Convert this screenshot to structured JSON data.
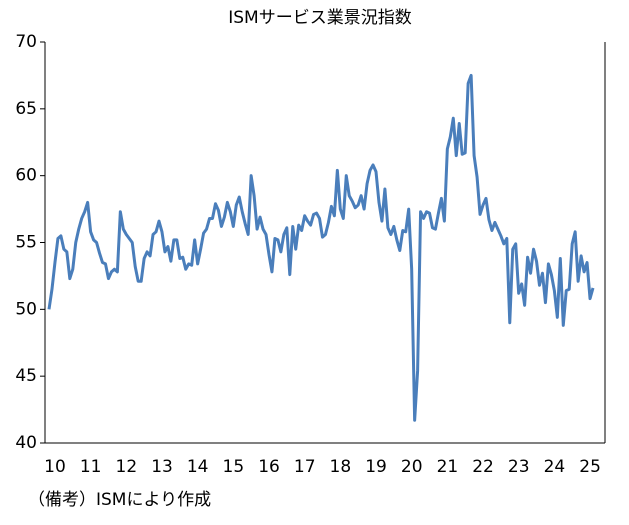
{
  "chart_data": {
    "type": "line",
    "title": "ISMサービス業景況指数",
    "note": "（備考）ISMにより作成",
    "categories": [
      "10",
      null,
      null,
      null,
      null,
      null,
      null,
      null,
      null,
      null,
      null,
      null,
      "11",
      null,
      null,
      null,
      null,
      null,
      null,
      null,
      null,
      null,
      null,
      null,
      "12",
      null,
      null,
      null,
      null,
      null,
      null,
      null,
      null,
      null,
      null,
      null,
      "13",
      null,
      null,
      null,
      null,
      null,
      null,
      null,
      null,
      null,
      null,
      null,
      "14",
      null,
      null,
      null,
      null,
      null,
      null,
      null,
      null,
      null,
      null,
      null,
      "15",
      null,
      null,
      null,
      null,
      null,
      null,
      null,
      null,
      null,
      null,
      null,
      "16",
      null,
      null,
      null,
      null,
      null,
      null,
      null,
      null,
      null,
      null,
      null,
      "17",
      null,
      null,
      null,
      null,
      null,
      null,
      null,
      null,
      null,
      null,
      null,
      "18",
      null,
      null,
      null,
      null,
      null,
      null,
      null,
      null,
      null,
      null,
      null,
      "19",
      null,
      null,
      null,
      null,
      null,
      null,
      null,
      null,
      null,
      null,
      null,
      "20",
      null,
      null,
      null,
      null,
      null,
      null,
      null,
      null,
      null,
      null,
      null,
      "21",
      null,
      null,
      null,
      null,
      null,
      null,
      null,
      null,
      null,
      null,
      null,
      "22",
      null,
      null,
      null,
      null,
      null,
      null,
      null,
      null,
      null,
      null,
      null,
      "23",
      null,
      null,
      null,
      null,
      null,
      null,
      null,
      null,
      null,
      null,
      null,
      "24",
      null,
      null,
      null,
      null,
      null,
      null,
      null,
      null,
      null,
      null,
      null,
      "25",
      null,
      null,
      null
    ],
    "values": [
      50.0,
      51.5,
      53.5,
      55.3,
      55.5,
      54.5,
      54.3,
      52.3,
      53.0,
      55.0,
      56.0,
      56.8,
      57.3,
      58.0,
      55.8,
      55.2,
      55.0,
      54.2,
      53.5,
      53.4,
      52.3,
      52.8,
      53.0,
      52.8,
      57.3,
      56.0,
      55.6,
      55.3,
      55.0,
      53.2,
      52.1,
      52.1,
      53.8,
      54.3,
      54.0,
      55.6,
      55.8,
      56.6,
      55.8,
      54.3,
      54.7,
      53.6,
      55.2,
      55.2,
      53.8,
      53.9,
      53.0,
      53.4,
      53.3,
      55.2,
      53.4,
      54.5,
      55.7,
      56.0,
      56.8,
      56.8,
      57.9,
      57.4,
      56.2,
      56.9,
      58.0,
      57.3,
      56.2,
      57.8,
      58.4,
      57.3,
      56.4,
      55.6,
      60.0,
      58.5,
      56.0,
      56.9,
      56.0,
      55.6,
      54.1,
      52.8,
      55.3,
      55.2,
      54.3,
      55.6,
      56.1,
      52.6,
      56.2,
      54.5,
      56.3,
      55.9,
      57.0,
      56.6,
      56.3,
      57.1,
      57.2,
      56.8,
      55.4,
      55.6,
      56.5,
      57.7,
      57.0,
      60.4,
      57.5,
      56.8,
      60.0,
      58.5,
      58.1,
      57.6,
      57.8,
      58.5,
      57.5,
      59.4,
      60.4,
      60.8,
      60.3,
      58.0,
      56.6,
      59.0,
      56.1,
      55.6,
      56.2,
      55.2,
      54.4,
      55.9,
      55.8,
      57.5,
      53.0,
      41.7,
      45.4,
      57.3,
      56.8,
      57.3,
      57.2,
      56.1,
      56.0,
      57.2,
      58.3,
      56.6,
      62.0,
      62.9,
      64.3,
      61.5,
      63.9,
      61.6,
      61.7,
      66.9,
      67.5,
      61.5,
      59.9,
      57.1,
      57.8,
      58.3,
      56.7,
      55.9,
      56.5,
      56.0,
      55.5,
      54.9,
      55.3,
      49.0,
      54.5,
      54.9,
      51.2,
      51.9,
      50.3,
      53.9,
      52.7,
      54.5,
      53.6,
      51.8,
      52.7,
      50.5,
      53.4,
      52.6,
      51.4,
      49.4,
      53.8,
      48.8,
      51.4,
      51.5,
      54.9,
      55.8,
      52.1,
      54.0,
      52.8,
      53.5,
      50.8,
      51.6
    ],
    "color": "#4a7ebb",
    "ylim": [
      40,
      70
    ],
    "yticks": [
      40,
      45,
      50,
      55,
      60,
      65,
      70
    ]
  }
}
